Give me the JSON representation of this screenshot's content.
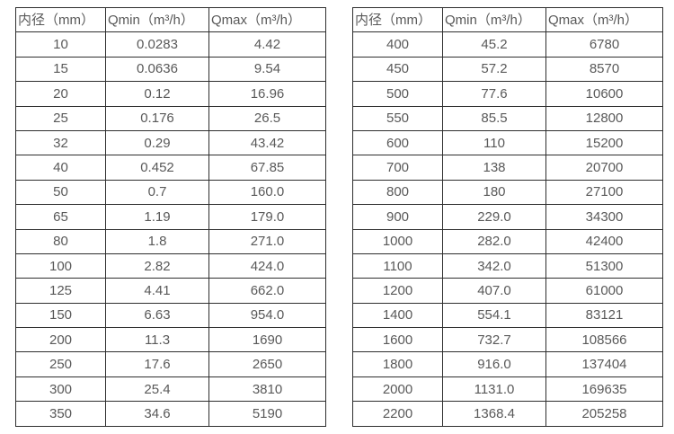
{
  "colors": {
    "background": "#ffffff",
    "border": "#2e2e2e",
    "text": "#595959"
  },
  "tables": [
    {
      "name": "diameter-flow-table-small",
      "headers": [
        "内径（mm）",
        "Qmin（m³/h）",
        "Qmax（m³/h）"
      ],
      "rows": [
        [
          "10",
          "0.0283",
          "4.42"
        ],
        [
          "15",
          "0.0636",
          "9.54"
        ],
        [
          "20",
          "0.12",
          "16.96"
        ],
        [
          "25",
          "0.176",
          "26.5"
        ],
        [
          "32",
          "0.29",
          "43.42"
        ],
        [
          "40",
          "0.452",
          "67.85"
        ],
        [
          "50",
          "0.7",
          "160.0"
        ],
        [
          "65",
          "1.19",
          "179.0"
        ],
        [
          "80",
          "1.8",
          "271.0"
        ],
        [
          "100",
          "2.82",
          "424.0"
        ],
        [
          "125",
          "4.41",
          "662.0"
        ],
        [
          "150",
          "6.63",
          "954.0"
        ],
        [
          "200",
          "11.3",
          "1690"
        ],
        [
          "250",
          "17.6",
          "2650"
        ],
        [
          "300",
          "25.4",
          "3810"
        ],
        [
          "350",
          "34.6",
          "5190"
        ]
      ]
    },
    {
      "name": "diameter-flow-table-large",
      "headers": [
        "内径（mm）",
        "Qmin（m³/h）",
        "Qmax（m³/h）"
      ],
      "rows": [
        [
          "400",
          "45.2",
          "6780"
        ],
        [
          "450",
          "57.2",
          "8570"
        ],
        [
          "500",
          "77.6",
          "10600"
        ],
        [
          "550",
          "85.5",
          "12800"
        ],
        [
          "600",
          "110",
          "15200"
        ],
        [
          "700",
          "138",
          "20700"
        ],
        [
          "800",
          "180",
          "27100"
        ],
        [
          "900",
          "229.0",
          "34300"
        ],
        [
          "1000",
          "282.0",
          "42400"
        ],
        [
          "1100",
          "342.0",
          "51300"
        ],
        [
          "1200",
          "407.0",
          "61000"
        ],
        [
          "1400",
          "554.1",
          "83121"
        ],
        [
          "1600",
          "732.7",
          "108566"
        ],
        [
          "1800",
          "916.0",
          "137404"
        ],
        [
          "2000",
          "1131.0",
          "169635"
        ],
        [
          "2200",
          "1368.4",
          "205258"
        ]
      ]
    }
  ]
}
